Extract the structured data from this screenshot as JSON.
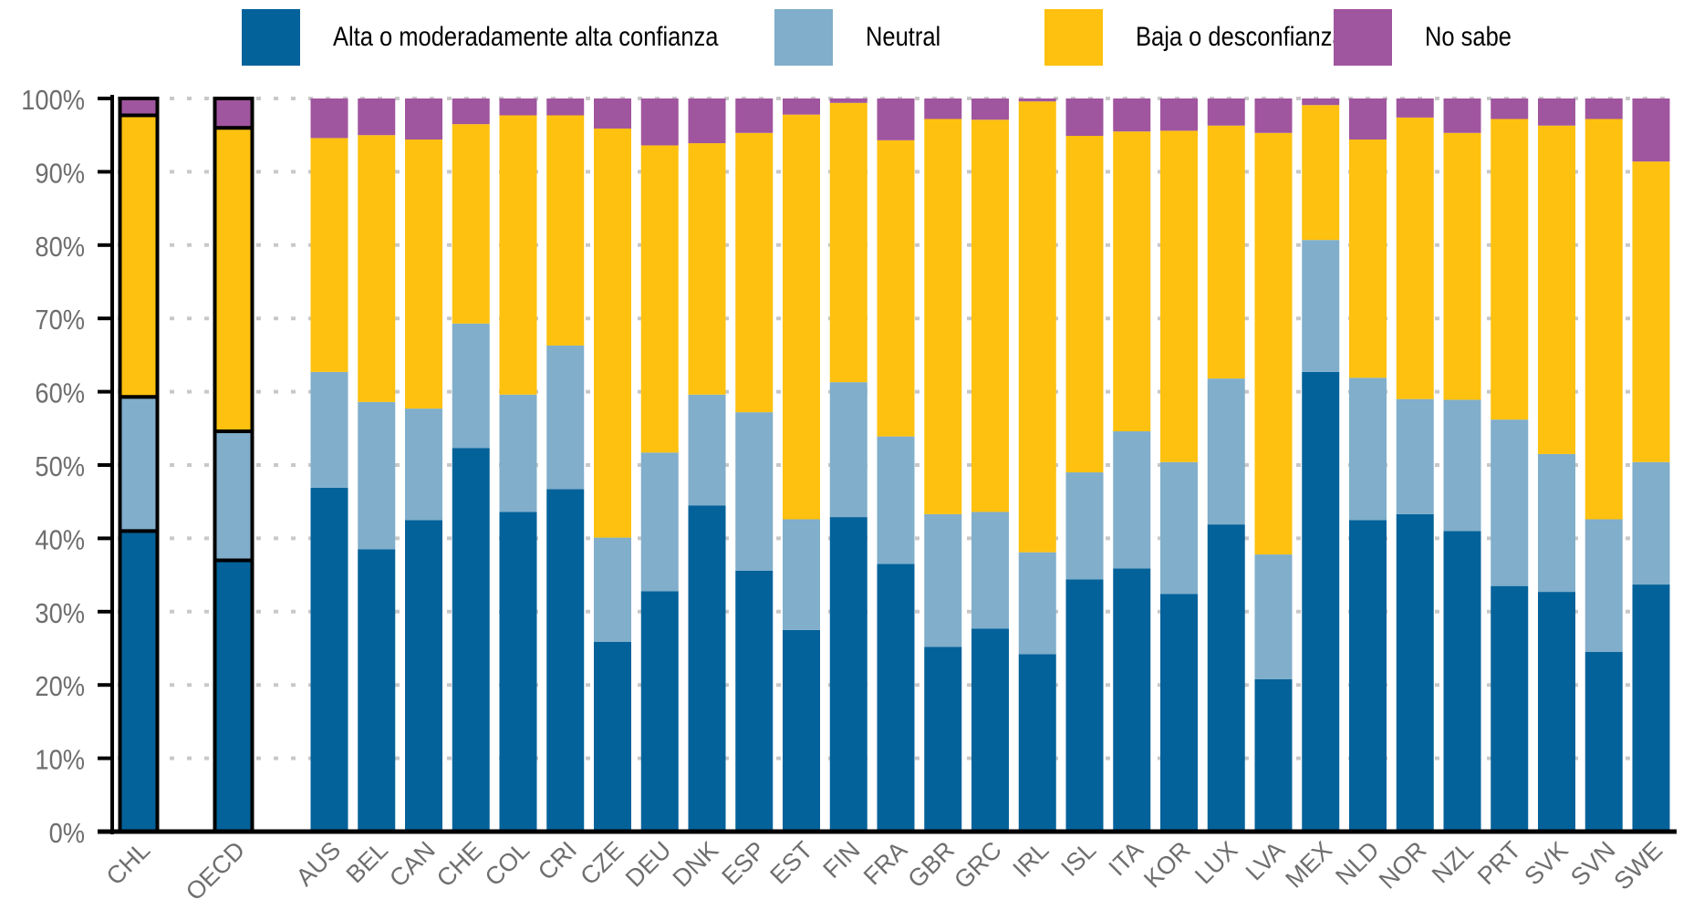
{
  "chart_data": {
    "type": "bar",
    "stacked": true,
    "title": "",
    "xlabel": "",
    "ylabel": "",
    "ylim": [
      0,
      100
    ],
    "yticks": [
      "0%",
      "10%",
      "20%",
      "30%",
      "40%",
      "50%",
      "60%",
      "70%",
      "80%",
      "90%",
      "100%"
    ],
    "grid": "horizontal-dotted",
    "legend_position": "top",
    "highlighted_categories": [
      "CHL",
      "OECD"
    ],
    "categories": [
      "CHL",
      "OECD",
      "AUS",
      "BEL",
      "CAN",
      "CHE",
      "COL",
      "CRI",
      "CZE",
      "DEU",
      "DNK",
      "ESP",
      "EST",
      "FIN",
      "FRA",
      "GBR",
      "GRC",
      "IRL",
      "ISL",
      "ITA",
      "KOR",
      "LUX",
      "LVA",
      "MEX",
      "NLD",
      "NOR",
      "NZL",
      "PRT",
      "SVK",
      "SVN",
      "SWE"
    ],
    "series": [
      {
        "name": "Alta o moderadamente alta confianza",
        "color": "#04629a",
        "values": [
          41.0,
          37.0,
          46.9,
          38.5,
          42.5,
          52.3,
          43.6,
          46.7,
          25.9,
          32.8,
          44.5,
          35.6,
          27.5,
          42.9,
          36.5,
          25.2,
          27.7,
          24.2,
          34.4,
          35.9,
          32.4,
          41.9,
          20.8,
          62.7,
          42.5,
          43.3,
          41.0,
          33.5,
          32.7,
          24.5,
          33.7
        ]
      },
      {
        "name": "Neutral",
        "color": "#80aecb",
        "values": [
          18.3,
          17.6,
          15.8,
          20.1,
          15.2,
          17.0,
          16.0,
          19.6,
          14.2,
          18.9,
          15.1,
          21.6,
          15.1,
          18.4,
          17.4,
          18.1,
          15.9,
          13.9,
          14.6,
          18.7,
          18.0,
          19.9,
          17.0,
          18.0,
          19.4,
          15.7,
          17.9,
          22.7,
          18.8,
          18.1,
          16.7
        ]
      },
      {
        "name": "Baja o desconfianza",
        "color": "#fec10f",
        "values": [
          38.4,
          41.4,
          31.9,
          36.4,
          36.7,
          27.2,
          38.1,
          31.4,
          55.8,
          41.9,
          34.3,
          38.1,
          55.2,
          38.1,
          40.4,
          53.9,
          53.5,
          61.5,
          45.9,
          40.9,
          45.2,
          34.5,
          57.5,
          18.4,
          32.5,
          38.4,
          36.4,
          41.0,
          44.8,
          54.6,
          41.0
        ]
      },
      {
        "name": "No sabe",
        "color": "#a0559f",
        "values": [
          2.3,
          4.0,
          5.4,
          5.0,
          5.6,
          3.5,
          2.3,
          2.3,
          4.1,
          6.4,
          6.1,
          4.7,
          2.2,
          0.6,
          5.7,
          2.8,
          2.9,
          0.4,
          5.1,
          4.5,
          4.4,
          3.7,
          4.7,
          0.9,
          5.6,
          2.6,
          4.7,
          2.8,
          3.7,
          2.8,
          8.6
        ]
      }
    ]
  }
}
